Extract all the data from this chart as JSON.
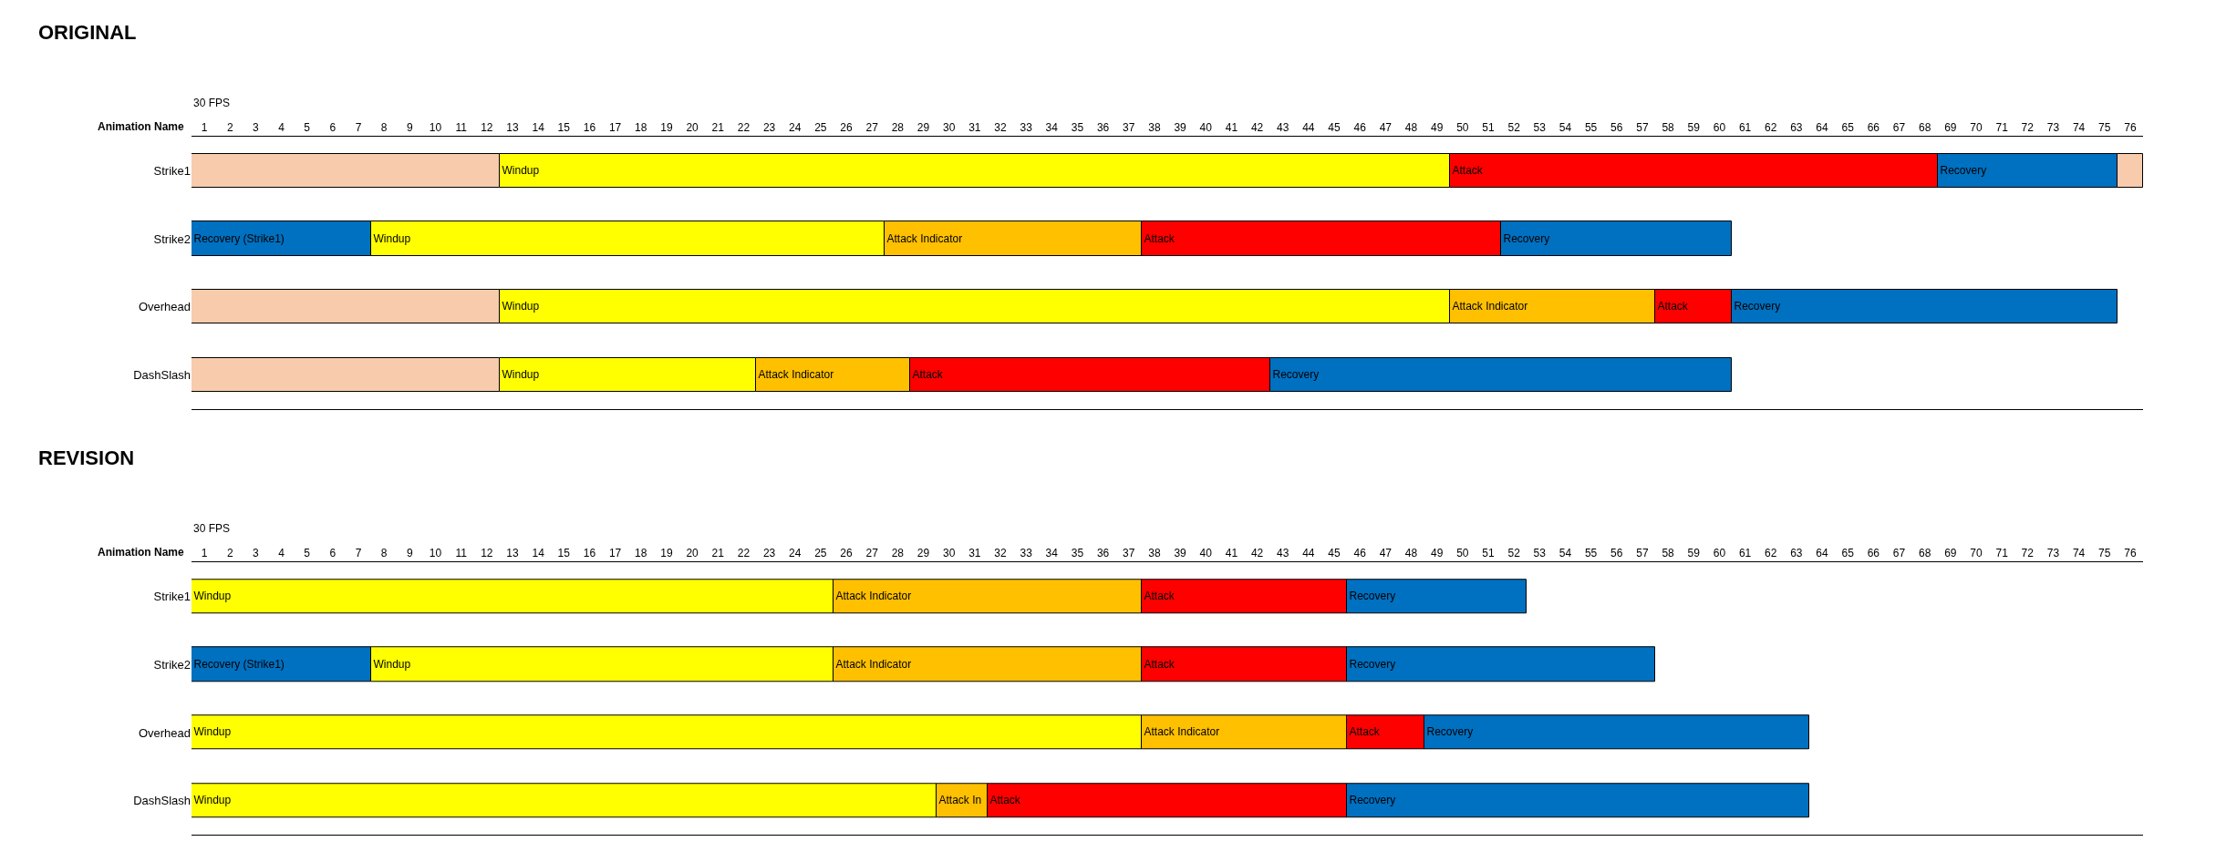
{
  "chart_data": [
    {
      "type": "bar",
      "orientation": "horizontal",
      "stacked": true,
      "title": "ORIGINAL",
      "subtitle": "30 FPS",
      "ylabel": "Animation Name",
      "categories": [
        "Strike1",
        "Strike2",
        "Overhead",
        "DashSlash"
      ],
      "xlim": [
        0,
        76
      ],
      "xticks": [
        {
          "value": 0.5,
          "label": "1"
        },
        {
          "value": 1.5,
          "label": "2"
        },
        {
          "value": 2.5,
          "label": "3"
        },
        {
          "value": 3.5,
          "label": "4"
        },
        {
          "value": 4.5,
          "label": "5"
        },
        {
          "value": 5.5,
          "label": "6"
        },
        {
          "value": 6.5,
          "label": "7"
        },
        {
          "value": 7.5,
          "label": "8"
        },
        {
          "value": 8.5,
          "label": "9"
        },
        {
          "value": 9.5,
          "label": "10"
        },
        {
          "value": 10.5,
          "label": "11"
        },
        {
          "value": 11.5,
          "label": "12"
        },
        {
          "value": 12.5,
          "label": "13"
        },
        {
          "value": 13.5,
          "label": "14"
        },
        {
          "value": 14.5,
          "label": "15"
        },
        {
          "value": 15.5,
          "label": "16"
        },
        {
          "value": 16.5,
          "label": "17"
        },
        {
          "value": 17.5,
          "label": "18"
        },
        {
          "value": 18.5,
          "label": "19"
        },
        {
          "value": 19.5,
          "label": "20"
        },
        {
          "value": 20.5,
          "label": "21"
        },
        {
          "value": 21.5,
          "label": "22"
        },
        {
          "value": 22.5,
          "label": "23"
        },
        {
          "value": 23.5,
          "label": "24"
        },
        {
          "value": 24.5,
          "label": "25"
        },
        {
          "value": 25.5,
          "label": "26"
        },
        {
          "value": 26.5,
          "label": "27"
        },
        {
          "value": 27.5,
          "label": "28"
        },
        {
          "value": 28.5,
          "label": "29"
        },
        {
          "value": 29.5,
          "label": "30"
        },
        {
          "value": 30.5,
          "label": "31"
        },
        {
          "value": 31.5,
          "label": "32"
        },
        {
          "value": 32.5,
          "label": "33"
        },
        {
          "value": 33.5,
          "label": "34"
        },
        {
          "value": 34.5,
          "label": "35"
        },
        {
          "value": 35.5,
          "label": "36"
        },
        {
          "value": 36.5,
          "label": "37"
        },
        {
          "value": 37.5,
          "label": "38"
        },
        {
          "value": 38.5,
          "label": "39"
        },
        {
          "value": 39.5,
          "label": "40"
        },
        {
          "value": 40.5,
          "label": "41"
        },
        {
          "value": 41.5,
          "label": "42"
        },
        {
          "value": 42.5,
          "label": "43"
        },
        {
          "value": 43.5,
          "label": "44"
        },
        {
          "value": 44.5,
          "label": "45"
        },
        {
          "value": 45.5,
          "label": "46"
        },
        {
          "value": 46.5,
          "label": "47"
        },
        {
          "value": 47.5,
          "label": "48"
        },
        {
          "value": 48.5,
          "label": "49"
        },
        {
          "value": 49.5,
          "label": "50"
        },
        {
          "value": 50.5,
          "label": "51"
        },
        {
          "value": 51.5,
          "label": "52"
        },
        {
          "value": 52.5,
          "label": "53"
        },
        {
          "value": 53.5,
          "label": "54"
        },
        {
          "value": 54.5,
          "label": "55"
        },
        {
          "value": 55.5,
          "label": "56"
        },
        {
          "value": 56.5,
          "label": "57"
        },
        {
          "value": 57.5,
          "label": "58"
        },
        {
          "value": 58.5,
          "label": "59"
        },
        {
          "value": 59.5,
          "label": "60"
        },
        {
          "value": 60.5,
          "label": "61"
        },
        {
          "value": 61.5,
          "label": "62"
        },
        {
          "value": 62.5,
          "label": "63"
        },
        {
          "value": 63.5,
          "label": "64"
        },
        {
          "value": 64.5,
          "label": "65"
        },
        {
          "value": 65.5,
          "label": "66"
        },
        {
          "value": 66.5,
          "label": "67"
        },
        {
          "value": 67.5,
          "label": "68"
        },
        {
          "value": 68.5,
          "label": "69"
        },
        {
          "value": 69.5,
          "label": "70"
        },
        {
          "value": 70.5,
          "label": "71"
        },
        {
          "value": 71.5,
          "label": "72"
        },
        {
          "value": 72.5,
          "label": "73"
        },
        {
          "value": 73.5,
          "label": "74"
        },
        {
          "value": 74.5,
          "label": "75"
        },
        {
          "value": 75.5,
          "label": "76"
        }
      ],
      "series": [
        {
          "values": [
            12,
            7,
            12,
            12
          ],
          "colors": [
            "#f8cbad",
            "#0070c0",
            "#f8cbad",
            "#f8cbad"
          ],
          "value_labels": [
            null,
            "Recovery (Strike1)",
            null,
            null
          ]
        },
        {
          "values": [
            37,
            20,
            37,
            10
          ],
          "colors": [
            "#ffff00",
            "#ffff00",
            "#ffff00",
            "#ffff00"
          ],
          "value_labels": [
            "Windup",
            "Windup",
            "Windup",
            "Windup"
          ]
        },
        {
          "values": [
            19,
            10,
            8,
            6
          ],
          "colors": [
            "#ff0000",
            "#ffc000",
            "#ffc000",
            "#ffc000"
          ],
          "value_labels": [
            "Attack",
            "Attack Indicator",
            "Attack Indicator",
            "Attack Indicator"
          ]
        },
        {
          "values": [
            7,
            14,
            3,
            14
          ],
          "colors": [
            "#0070c0",
            "#ff0000",
            "#ff0000",
            "#ff0000"
          ],
          "value_labels": [
            "Recovery",
            "Attack",
            "Attack",
            "Attack"
          ]
        },
        {
          "values": [
            1,
            9,
            15,
            18
          ],
          "colors": [
            "#f8cbad",
            "#0070c0",
            "#0070c0",
            "#0070c0"
          ],
          "value_labels": [
            null,
            "Recovery",
            "Recovery",
            "Recovery"
          ]
        }
      ]
    },
    {
      "type": "bar",
      "orientation": "horizontal",
      "stacked": true,
      "title": "REVISION",
      "subtitle": "30 FPS",
      "ylabel": "Animation Name",
      "categories": [
        "Strike1",
        "Strike2",
        "Overhead",
        "DashSlash"
      ],
      "xlim": [
        0,
        76
      ],
      "xticks": [
        {
          "value": 0.5,
          "label": "1"
        },
        {
          "value": 1.5,
          "label": "2"
        },
        {
          "value": 2.5,
          "label": "3"
        },
        {
          "value": 3.5,
          "label": "4"
        },
        {
          "value": 4.5,
          "label": "5"
        },
        {
          "value": 5.5,
          "label": "6"
        },
        {
          "value": 6.5,
          "label": "7"
        },
        {
          "value": 7.5,
          "label": "8"
        },
        {
          "value": 8.5,
          "label": "9"
        },
        {
          "value": 9.5,
          "label": "10"
        },
        {
          "value": 10.5,
          "label": "11"
        },
        {
          "value": 11.5,
          "label": "12"
        },
        {
          "value": 12.5,
          "label": "13"
        },
        {
          "value": 13.5,
          "label": "14"
        },
        {
          "value": 14.5,
          "label": "15"
        },
        {
          "value": 15.5,
          "label": "16"
        },
        {
          "value": 16.5,
          "label": "17"
        },
        {
          "value": 17.5,
          "label": "18"
        },
        {
          "value": 18.5,
          "label": "19"
        },
        {
          "value": 19.5,
          "label": "20"
        },
        {
          "value": 20.5,
          "label": "21"
        },
        {
          "value": 21.5,
          "label": "22"
        },
        {
          "value": 22.5,
          "label": "23"
        },
        {
          "value": 23.5,
          "label": "24"
        },
        {
          "value": 24.5,
          "label": "25"
        },
        {
          "value": 25.5,
          "label": "26"
        },
        {
          "value": 26.5,
          "label": "27"
        },
        {
          "value": 27.5,
          "label": "28"
        },
        {
          "value": 28.5,
          "label": "29"
        },
        {
          "value": 29.5,
          "label": "30"
        },
        {
          "value": 30.5,
          "label": "31"
        },
        {
          "value": 31.5,
          "label": "32"
        },
        {
          "value": 32.5,
          "label": "33"
        },
        {
          "value": 33.5,
          "label": "34"
        },
        {
          "value": 34.5,
          "label": "35"
        },
        {
          "value": 35.5,
          "label": "36"
        },
        {
          "value": 36.5,
          "label": "37"
        },
        {
          "value": 37.5,
          "label": "38"
        },
        {
          "value": 38.5,
          "label": "39"
        },
        {
          "value": 39.5,
          "label": "40"
        },
        {
          "value": 40.5,
          "label": "41"
        },
        {
          "value": 41.5,
          "label": "42"
        },
        {
          "value": 42.5,
          "label": "43"
        },
        {
          "value": 43.5,
          "label": "44"
        },
        {
          "value": 44.5,
          "label": "45"
        },
        {
          "value": 45.5,
          "label": "46"
        },
        {
          "value": 46.5,
          "label": "47"
        },
        {
          "value": 47.5,
          "label": "48"
        },
        {
          "value": 48.5,
          "label": "49"
        },
        {
          "value": 49.5,
          "label": "50"
        },
        {
          "value": 50.5,
          "label": "51"
        },
        {
          "value": 51.5,
          "label": "52"
        },
        {
          "value": 52.5,
          "label": "53"
        },
        {
          "value": 53.5,
          "label": "54"
        },
        {
          "value": 54.5,
          "label": "55"
        },
        {
          "value": 55.5,
          "label": "56"
        },
        {
          "value": 56.5,
          "label": "57"
        },
        {
          "value": 57.5,
          "label": "58"
        },
        {
          "value": 58.5,
          "label": "59"
        },
        {
          "value": 59.5,
          "label": "60"
        },
        {
          "value": 60.5,
          "label": "61"
        },
        {
          "value": 61.5,
          "label": "62"
        },
        {
          "value": 62.5,
          "label": "63"
        },
        {
          "value": 63.5,
          "label": "64"
        },
        {
          "value": 64.5,
          "label": "65"
        },
        {
          "value": 65.5,
          "label": "66"
        },
        {
          "value": 66.5,
          "label": "67"
        },
        {
          "value": 67.5,
          "label": "68"
        },
        {
          "value": 68.5,
          "label": "69"
        },
        {
          "value": 69.5,
          "label": "70"
        },
        {
          "value": 70.5,
          "label": "71"
        },
        {
          "value": 71.5,
          "label": "72"
        },
        {
          "value": 72.5,
          "label": "73"
        },
        {
          "value": 73.5,
          "label": "74"
        },
        {
          "value": 74.5,
          "label": "75"
        },
        {
          "value": 75.5,
          "label": "76"
        }
      ],
      "series": [
        {
          "values": [
            25,
            7,
            37,
            29
          ],
          "colors": [
            "#ffff00",
            "#0070c0",
            "#ffff00",
            "#ffff00"
          ],
          "value_labels": [
            "Windup",
            "Recovery (Strike1)",
            "Windup",
            "Windup"
          ]
        },
        {
          "values": [
            12,
            18,
            8,
            2
          ],
          "colors": [
            "#ffc000",
            "#ffff00",
            "#ffc000",
            "#ffc000"
          ],
          "value_labels": [
            "Attack Indicator",
            "Windup",
            "Attack Indicator",
            "Attack In"
          ]
        },
        {
          "values": [
            8,
            12,
            3,
            14
          ],
          "colors": [
            "#ff0000",
            "#ffc000",
            "#ff0000",
            "#ff0000"
          ],
          "value_labels": [
            "Attack",
            "Attack Indicator",
            "Attack",
            "Attack"
          ]
        },
        {
          "values": [
            7,
            8,
            15,
            18
          ],
          "colors": [
            "#0070c0",
            "#ff0000",
            "#0070c0",
            "#0070c0"
          ],
          "value_labels": [
            "Recovery",
            "Attack",
            "Recovery",
            "Recovery"
          ]
        },
        {
          "values": [
            null,
            12,
            null,
            null
          ],
          "colors": [
            null,
            "#0070c0",
            null,
            null
          ],
          "value_labels": [
            null,
            "Recovery",
            null,
            null
          ]
        }
      ]
    }
  ]
}
